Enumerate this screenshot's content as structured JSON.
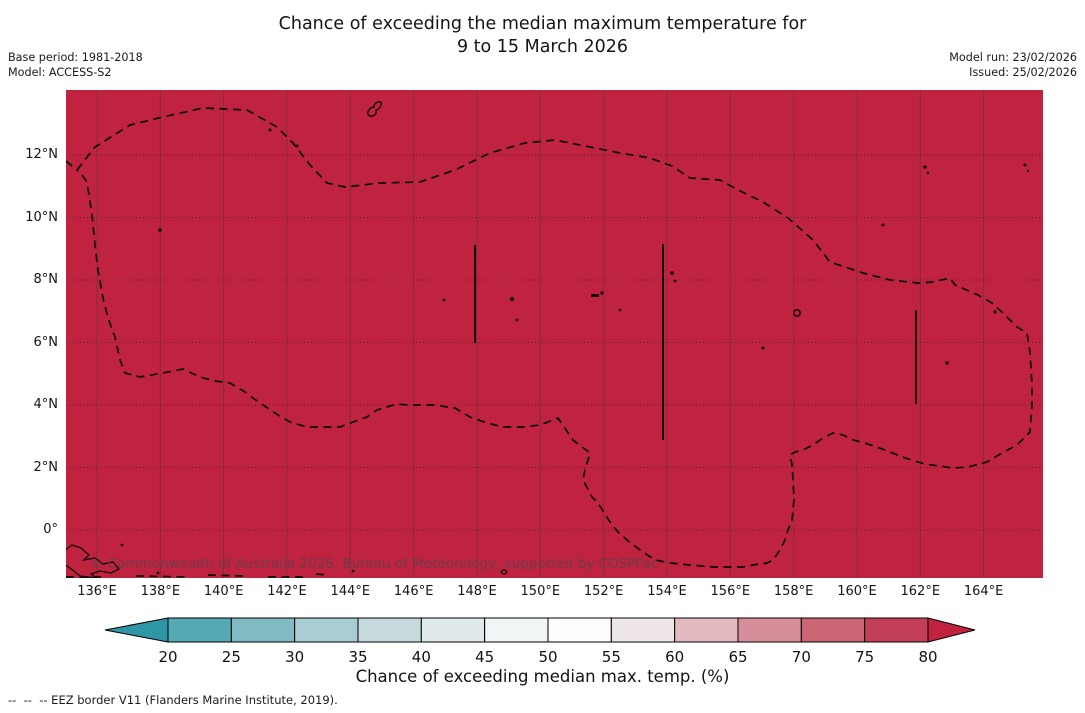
{
  "title": {
    "line1": "Chance of exceeding the median maximum temperature for",
    "line2": "9 to 15 March 2026"
  },
  "meta": {
    "base_period": "Base period: 1981-2018",
    "model": "Model: ACCESS-S2",
    "model_run": "Model run: 23/02/2026",
    "issued": "Issued: 25/02/2026"
  },
  "map": {
    "watermark": "© Commonwealth of Australia 2026, Bureau of Meteorology, supported by COSPPac",
    "x_tick_labels": [
      "136°E",
      "138°E",
      "140°E",
      "142°E",
      "144°E",
      "146°E",
      "148°E",
      "150°E",
      "152°E",
      "154°E",
      "156°E",
      "158°E",
      "160°E",
      "162°E",
      "164°E"
    ],
    "y_tick_labels": [
      "12°N",
      "10°N",
      "8°N",
      "6°N",
      "4°N",
      "2°N",
      "0°"
    ],
    "fill_color": "#bf2340",
    "eez_border_color": "#000000"
  },
  "colorbar": {
    "label": "Chance of exceeding median max. temp. (%)",
    "tick_labels": [
      "20",
      "25",
      "30",
      "35",
      "40",
      "45",
      "50",
      "55",
      "60",
      "65",
      "70",
      "75",
      "80"
    ],
    "segment_colors": [
      "#57a9b6",
      "#82bac3",
      "#a8cdd2",
      "#c6dadd",
      "#e0eaea",
      "#f2f5f5",
      "#fdfdfd",
      "#efe7e7",
      "#e2bac0",
      "#d68f9a",
      "#cb6674",
      "#c23f57"
    ],
    "under_arrow_color": "#2f96a6",
    "over_arrow_color": "#bf2340"
  },
  "footnote": "--  --  -- EEZ border V11 (Flanders Marine Institute, 2019).",
  "chart_data": {
    "type": "heatmap",
    "title": "Chance of exceeding the median maximum temperature for 9 to 15 March 2026",
    "base_period": "1981-2018",
    "model": "ACCESS-S2",
    "model_run": "23/02/2026",
    "issued": "25/02/2026",
    "x_tick_labels": [
      "136°E",
      "138°E",
      "140°E",
      "142°E",
      "144°E",
      "146°E",
      "148°E",
      "150°E",
      "152°E",
      "154°E",
      "156°E",
      "158°E",
      "160°E",
      "162°E",
      "164°E"
    ],
    "y_tick_labels": [
      "0°",
      "2°N",
      "4°N",
      "6°N",
      "8°N",
      "10°N",
      "12°N"
    ],
    "colorbar_label": "Chance of exceeding median max. temp. (%)",
    "colorbar_ticks": [
      20,
      25,
      30,
      35,
      40,
      45,
      50,
      55,
      60,
      65,
      70,
      75,
      80
    ],
    "field_value_percent": "entire mapped region shaded above 80%",
    "overlays": [
      "dashed EEZ border lines",
      "island coastline outlines"
    ],
    "legend_position": "bottom"
  }
}
